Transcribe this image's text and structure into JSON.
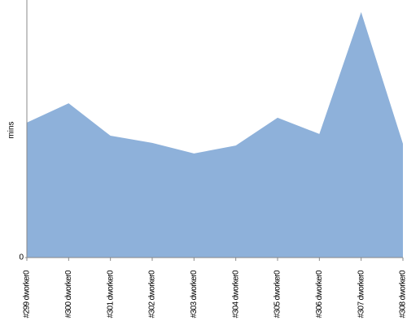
{
  "chart_data": {
    "type": "area",
    "y_label": "mins",
    "categories": [
      "#299 dworker0",
      "#300 dworker0",
      "#301 dworker0",
      "#302 dworker0",
      "#303 dworker0",
      "#304 dworker0",
      "#305 dworker0",
      "#306 dworker0",
      "#307 dworker0",
      "#308 dworker0"
    ],
    "values": [
      52.4,
      59.9,
      47.3,
      44.5,
      40.4,
      43.5,
      54.3,
      48,
      95.3,
      44.2
    ],
    "color": "#8eb1da",
    "ylim": [
      0,
      100
    ],
    "yticks": [
      0
    ]
  }
}
